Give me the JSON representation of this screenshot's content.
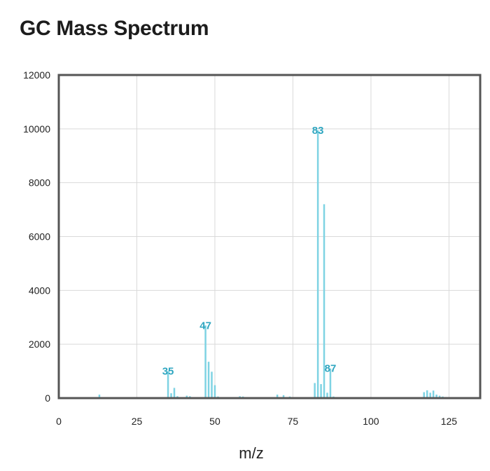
{
  "header": {
    "title": "GC Mass Spectrum"
  },
  "colors": {
    "bar": "#7fd3e3",
    "peak_label": "#2fa6c0",
    "grid": "#d9d9d9",
    "frame": "#555555"
  },
  "chart_data": {
    "type": "bar",
    "title": "GC Mass Spectrum",
    "xlabel": "m/z",
    "ylabel": "",
    "xlim": [
      0,
      135
    ],
    "ylim": [
      0,
      12000
    ],
    "xticks": [
      0,
      25,
      50,
      75,
      100,
      125
    ],
    "yticks": [
      0,
      2000,
      4000,
      6000,
      8000,
      10000,
      12000
    ],
    "grid": true,
    "peaks": [
      {
        "mz": 13,
        "intensity": 130
      },
      {
        "mz": 35,
        "intensity": 1000
      },
      {
        "mz": 36,
        "intensity": 180
      },
      {
        "mz": 37,
        "intensity": 380
      },
      {
        "mz": 38,
        "intensity": 70
      },
      {
        "mz": 41,
        "intensity": 90
      },
      {
        "mz": 42,
        "intensity": 70
      },
      {
        "mz": 47,
        "intensity": 2700
      },
      {
        "mz": 48,
        "intensity": 1350
      },
      {
        "mz": 49,
        "intensity": 980
      },
      {
        "mz": 50,
        "intensity": 480
      },
      {
        "mz": 51,
        "intensity": 60
      },
      {
        "mz": 58,
        "intensity": 70
      },
      {
        "mz": 59,
        "intensity": 60
      },
      {
        "mz": 70,
        "intensity": 130
      },
      {
        "mz": 72,
        "intensity": 110
      },
      {
        "mz": 74,
        "intensity": 60
      },
      {
        "mz": 82,
        "intensity": 560
      },
      {
        "mz": 83,
        "intensity": 9950
      },
      {
        "mz": 84,
        "intensity": 520
      },
      {
        "mz": 85,
        "intensity": 7200
      },
      {
        "mz": 86,
        "intensity": 200
      },
      {
        "mz": 87,
        "intensity": 1100
      },
      {
        "mz": 88,
        "intensity": 60
      },
      {
        "mz": 117,
        "intensity": 220
      },
      {
        "mz": 118,
        "intensity": 290
      },
      {
        "mz": 119,
        "intensity": 200
      },
      {
        "mz": 120,
        "intensity": 280
      },
      {
        "mz": 121,
        "intensity": 130
      },
      {
        "mz": 122,
        "intensity": 90
      },
      {
        "mz": 123,
        "intensity": 60
      },
      {
        "mz": 124,
        "intensity": 40
      }
    ],
    "annotations": [
      {
        "text": "35",
        "mz": 35,
        "intensity": 1000
      },
      {
        "text": "47",
        "mz": 47,
        "intensity": 2700
      },
      {
        "text": "83",
        "mz": 83,
        "intensity": 9950
      },
      {
        "text": "87",
        "mz": 87,
        "intensity": 1100
      }
    ]
  }
}
